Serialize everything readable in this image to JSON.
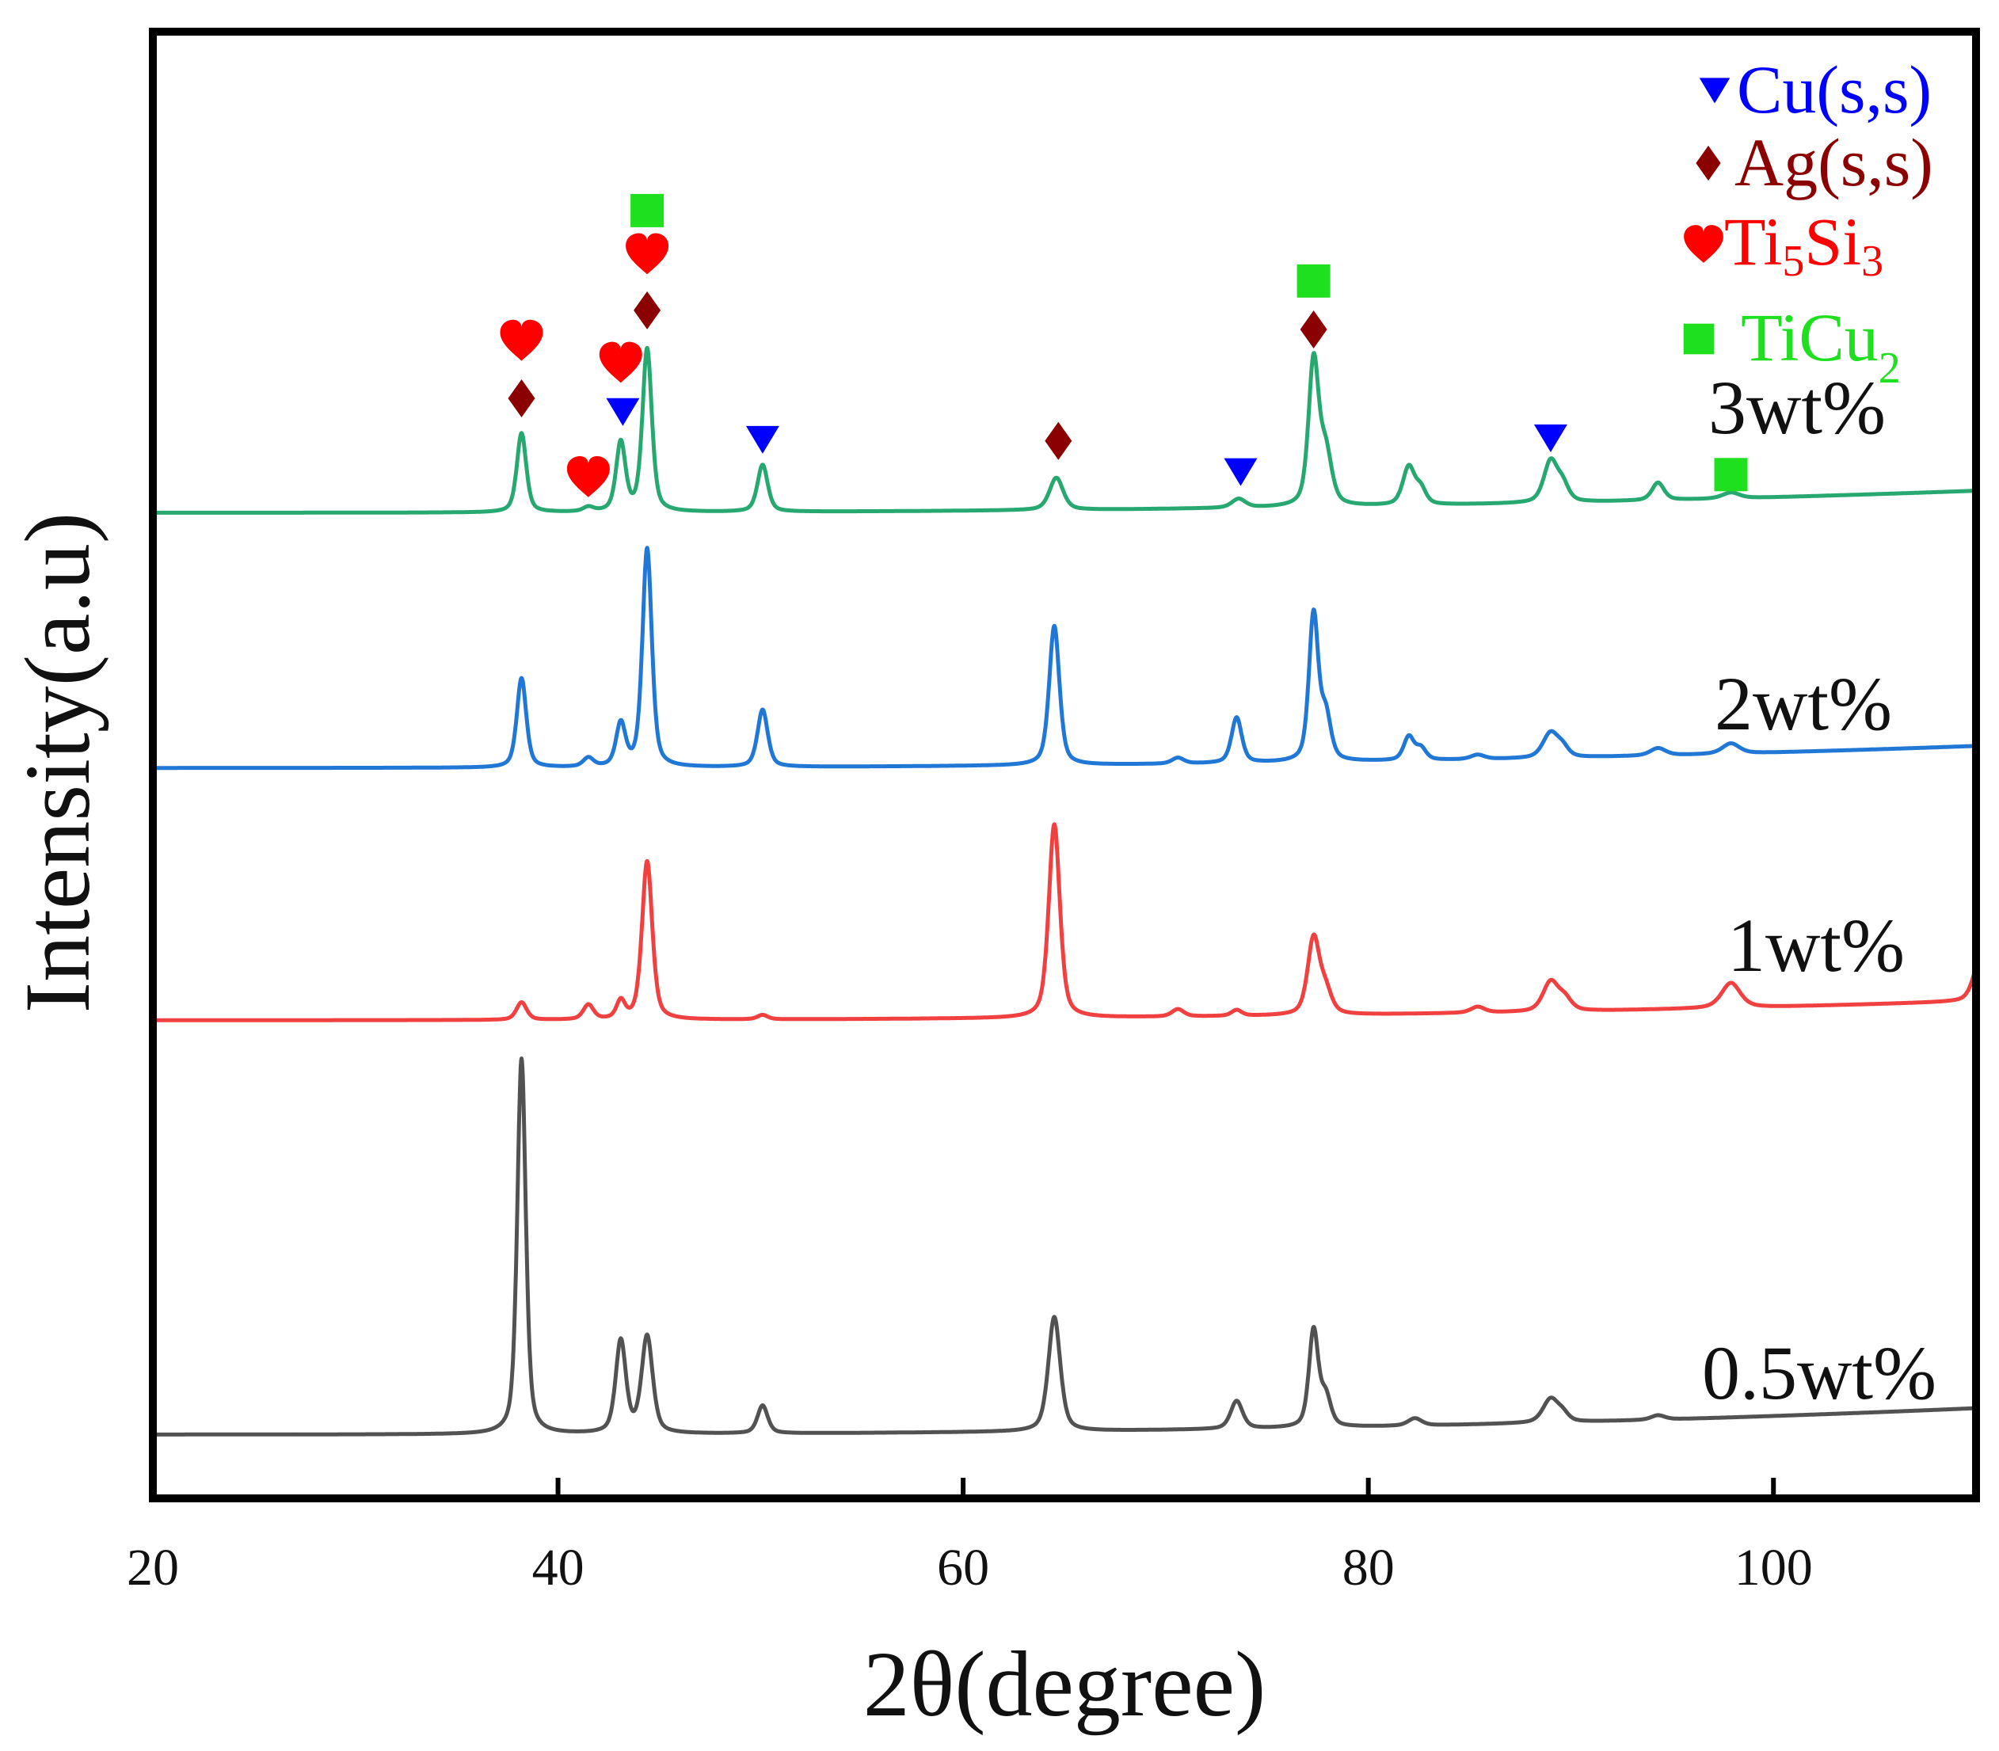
{
  "chart_data": {
    "type": "line",
    "title": "",
    "xlabel": "2θ(degree)",
    "ylabel": "Intensity(a.u)",
    "xlim": [
      20,
      110
    ],
    "ylim": [
      0,
      100
    ],
    "x_ticks": [
      20,
      40,
      60,
      80,
      100
    ],
    "grid": false,
    "series": [
      {
        "name": "0.5wt%",
        "color": "#525252",
        "baseline_start": 4.35,
        "baseline_rise": 1.8,
        "peaks": [
          [
            38.2,
            25.6,
            0.5
          ],
          [
            43.1,
            6.3,
            0.6
          ],
          [
            44.4,
            6.6,
            0.65
          ],
          [
            50.1,
            1.9,
            0.6
          ],
          [
            64.5,
            7.8,
            0.7
          ],
          [
            73.5,
            1.9,
            0.7
          ],
          [
            77.3,
            6.6,
            0.55
          ],
          [
            77.9,
            2.0,
            0.6
          ],
          [
            82.3,
            0.5,
            0.8
          ],
          [
            89.0,
            1.6,
            0.9
          ],
          [
            89.6,
            0.5,
            0.7
          ],
          [
            94.3,
            0.3,
            0.8
          ]
        ]
      },
      {
        "name": "1wt%",
        "color": "#f04040",
        "baseline_start": 32.6,
        "baseline_rise": 1.3,
        "peaks": [
          [
            38.2,
            1.2,
            0.6
          ],
          [
            41.5,
            1.0,
            0.6
          ],
          [
            43.1,
            1.2,
            0.5
          ],
          [
            44.4,
            10.8,
            0.6
          ],
          [
            50.1,
            0.3,
            0.6
          ],
          [
            64.5,
            13.2,
            0.65
          ],
          [
            70.6,
            0.5,
            0.7
          ],
          [
            73.5,
            0.4,
            0.6
          ],
          [
            77.3,
            5.2,
            0.7
          ],
          [
            77.9,
            1.5,
            0.7
          ],
          [
            85.4,
            0.4,
            0.8
          ],
          [
            89.0,
            2.0,
            0.9
          ],
          [
            89.7,
            0.8,
            0.8
          ],
          [
            97.9,
            1.7,
            1.1
          ],
          [
            110.2,
            2.8,
            0.8
          ]
        ]
      },
      {
        "name": "2wt%",
        "color": "#2077d6",
        "baseline_start": 49.8,
        "baseline_rise": 1.5,
        "peaks": [
          [
            38.2,
            6.1,
            0.55
          ],
          [
            41.5,
            0.6,
            0.6
          ],
          [
            43.1,
            2.9,
            0.55
          ],
          [
            44.4,
            14.9,
            0.55
          ],
          [
            50.1,
            3.9,
            0.6
          ],
          [
            64.5,
            9.5,
            0.6
          ],
          [
            70.6,
            0.4,
            0.7
          ],
          [
            73.5,
            3.1,
            0.6
          ],
          [
            77.3,
            10.0,
            0.55
          ],
          [
            77.9,
            3.0,
            0.6
          ],
          [
            82.0,
            1.6,
            0.6
          ],
          [
            82.6,
            0.8,
            0.6
          ],
          [
            85.4,
            0.3,
            0.8
          ],
          [
            89.0,
            1.7,
            0.9
          ],
          [
            89.6,
            0.6,
            0.7
          ],
          [
            94.3,
            0.5,
            0.9
          ],
          [
            97.9,
            0.7,
            1.0
          ]
        ]
      },
      {
        "name": "3wt%",
        "color": "#26a870",
        "baseline_start": 67.2,
        "baseline_rise": 1.5,
        "peaks": [
          [
            38.2,
            5.4,
            0.55
          ],
          [
            41.5,
            0.3,
            0.6
          ],
          [
            43.1,
            4.7,
            0.55
          ],
          [
            44.4,
            11.1,
            0.55
          ],
          [
            50.1,
            3.2,
            0.6
          ],
          [
            64.6,
            2.2,
            0.8
          ],
          [
            73.6,
            0.6,
            0.8
          ],
          [
            77.3,
            9.8,
            0.6
          ],
          [
            77.9,
            3.5,
            0.7
          ],
          [
            82.0,
            2.6,
            0.7
          ],
          [
            82.6,
            1.0,
            0.6
          ],
          [
            89.0,
            2.8,
            0.8
          ],
          [
            89.6,
            1.1,
            0.7
          ],
          [
            94.3,
            1.2,
            0.7
          ],
          [
            97.9,
            0.4,
            1.0
          ]
        ]
      }
    ],
    "legend": {
      "placement": "top-right",
      "entries": [
        {
          "phase": "cu",
          "marker": "triangle-down",
          "color": "#0000ff",
          "label_parts": [
            {
              "text": "Cu(s,s)"
            }
          ]
        },
        {
          "phase": "ag",
          "marker": "diamond",
          "color": "#8b0000",
          "label_parts": [
            {
              "text": "Ag(s,s)"
            }
          ]
        },
        {
          "phase": "ti5si3",
          "marker": "heart",
          "color": "#ff0000",
          "label_parts": [
            {
              "text": "Ti"
            },
            {
              "text": "5",
              "sub": true
            },
            {
              "text": "Si"
            },
            {
              "text": "3",
              "sub": true
            }
          ]
        },
        {
          "phase": "ticu2",
          "marker": "square",
          "color": "#1fe01f",
          "label_parts": [
            {
              "text": "TiCu"
            },
            {
              "text": "2",
              "sub": true
            }
          ]
        }
      ]
    },
    "phase_markers": [
      {
        "phase": "ag",
        "x": 38.2,
        "y": 75.0
      },
      {
        "phase": "ti5si3",
        "x": 38.2,
        "y": 78.9
      },
      {
        "phase": "ti5si3",
        "x": 41.5,
        "y": 69.6
      },
      {
        "phase": "ti5si3",
        "x": 43.1,
        "y": 77.4
      },
      {
        "phase": "cu",
        "x": 43.2,
        "y": 74.1
      },
      {
        "phase": "ticu2",
        "x": 44.4,
        "y": 87.8
      },
      {
        "phase": "ti5si3",
        "x": 44.4,
        "y": 84.8
      },
      {
        "phase": "ag",
        "x": 44.4,
        "y": 81.0
      },
      {
        "phase": "cu",
        "x": 50.1,
        "y": 72.2
      },
      {
        "phase": "ag",
        "x": 64.7,
        "y": 72.1
      },
      {
        "phase": "cu",
        "x": 73.7,
        "y": 70.0
      },
      {
        "phase": "ticu2",
        "x": 77.3,
        "y": 83.0
      },
      {
        "phase": "ag",
        "x": 77.3,
        "y": 79.7
      },
      {
        "phase": "cu",
        "x": 89.0,
        "y": 72.3
      },
      {
        "phase": "ticu2",
        "x": 97.9,
        "y": 69.8
      }
    ]
  }
}
